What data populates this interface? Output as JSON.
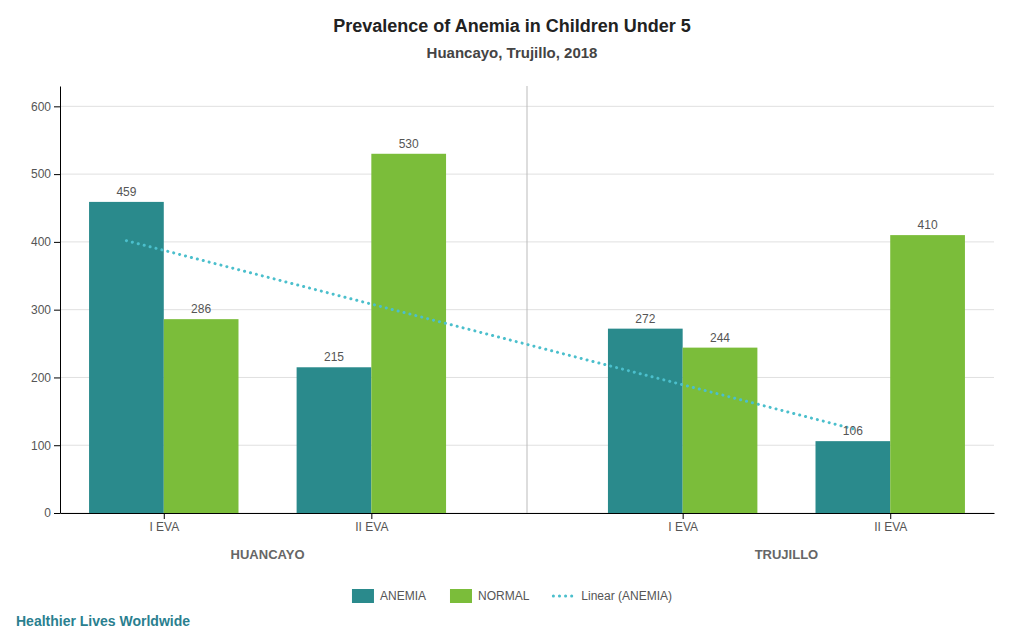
{
  "chart_data": {
    "type": "bar",
    "title": "Prevalence of Anemia in Children Under 5",
    "subtitle": "Huancayo, Trujillo, 2018",
    "categories": [
      "I EVA",
      "II EVA",
      "I EVA",
      "II EVA"
    ],
    "group_labels": [
      "HUANCAYO",
      "TRUJILLO"
    ],
    "series": [
      {
        "name": "ANEMIA",
        "color": "#2A8A8C",
        "values": [
          459,
          215,
          272,
          106
        ]
      },
      {
        "name": "NORMAL",
        "color": "#7BBD3A",
        "values": [
          286,
          530,
          244,
          410
        ]
      },
      {
        "name": "Linear (ANEMIA)",
        "type": "line",
        "line_style": "dotted",
        "color": "#4BBFCC",
        "values": [
          401.7931,
          322.5172,
          203.5172,
          124.2069
        ]
      }
    ],
    "ylim": [
      0,
      630
    ],
    "yticks": [
      0,
      100,
      200,
      300,
      400,
      500,
      600
    ],
    "grid": true,
    "data_labels": true,
    "legend": "bottom",
    "watermark": "Healthier Lives Worldwide"
  }
}
